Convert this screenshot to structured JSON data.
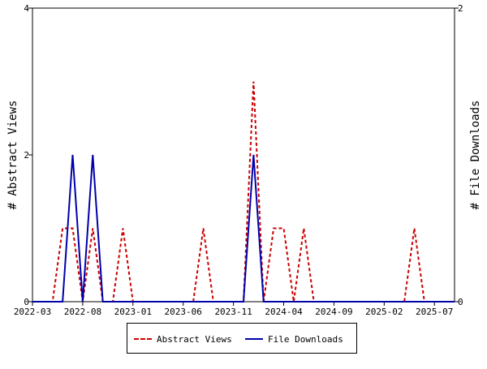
{
  "chart_data": {
    "type": "line",
    "x_tick_labels": [
      "2022-03",
      "2022-08",
      "2023-01",
      "2023-06",
      "2023-11",
      "2024-04",
      "2024-09",
      "2025-02",
      "2025-07"
    ],
    "x_ticks_month_index": [
      0,
      5,
      10,
      15,
      20,
      25,
      30,
      35,
      40
    ],
    "x_range_month_index": [
      0,
      42
    ],
    "y_left": {
      "label": "# Abstract Views",
      "ticks": [
        "0",
        "2",
        "4"
      ],
      "range": [
        0,
        4
      ]
    },
    "y_right": {
      "label": "# File Downloads",
      "ticks": [
        "0",
        "2"
      ],
      "range": [
        0,
        2
      ]
    },
    "grid": false,
    "legend": "bottom",
    "series": [
      {
        "name": "Abstract Views",
        "axis": "left",
        "color": "#cc0000",
        "style": "dashed",
        "values": [
          0,
          0,
          0,
          1,
          1,
          0,
          1,
          0,
          0,
          1,
          0,
          0,
          0,
          0,
          0,
          0,
          0,
          1,
          0,
          0,
          0,
          0,
          3,
          0,
          1,
          1,
          0,
          1,
          0,
          0,
          0,
          0,
          0,
          0,
          0,
          0,
          0,
          0,
          1,
          0,
          0,
          0,
          0
        ]
      },
      {
        "name": "File Downloads",
        "axis": "right",
        "color": "#0000aa",
        "style": "solid",
        "values": [
          0,
          0,
          0,
          0,
          1,
          0,
          1,
          0,
          0,
          0,
          0,
          0,
          0,
          0,
          0,
          0,
          0,
          0,
          0,
          0,
          0,
          0,
          1,
          0,
          0,
          0,
          0,
          0,
          0,
          0,
          0,
          0,
          0,
          0,
          0,
          0,
          0,
          0,
          0,
          0,
          0,
          0,
          0
        ]
      }
    ]
  }
}
